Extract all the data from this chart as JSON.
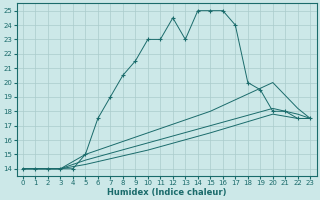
{
  "xlabel": "Humidex (Indice chaleur)",
  "xlim": [
    -0.5,
    23.5
  ],
  "ylim": [
    13.5,
    25.5
  ],
  "xticks": [
    0,
    1,
    2,
    3,
    4,
    5,
    6,
    7,
    8,
    9,
    10,
    11,
    12,
    13,
    14,
    15,
    16,
    17,
    18,
    19,
    20,
    21,
    22,
    23
  ],
  "yticks": [
    14,
    15,
    16,
    17,
    18,
    19,
    20,
    21,
    22,
    23,
    24,
    25
  ],
  "bg_color": "#cce8e8",
  "grid_color": "#aacccc",
  "line_color": "#1a6b6b",
  "line1_x": [
    0,
    1,
    2,
    3,
    4,
    5,
    6,
    7,
    8,
    9,
    10,
    11,
    12,
    13,
    14,
    15,
    16,
    17,
    18,
    19,
    20,
    21,
    22,
    23
  ],
  "line1_y": [
    14,
    14,
    14,
    14,
    14,
    15,
    17.5,
    19,
    20.5,
    21.5,
    23,
    23,
    24.5,
    23,
    25,
    25,
    25,
    24,
    20,
    19.5,
    18,
    18,
    17.5,
    17.5
  ],
  "line2_x": [
    0,
    23
  ],
  "line2_y": [
    14,
    17.5
  ],
  "line3_x": [
    0,
    23
  ],
  "line3_y": [
    14,
    17.5
  ],
  "line4_x": [
    0,
    23
  ],
  "line4_y": [
    14,
    17.5
  ],
  "line2_pts_x": [
    0,
    3,
    5,
    10,
    15,
    20,
    22,
    23
  ],
  "line2_pts_y": [
    14,
    14,
    14.3,
    15.3,
    16.5,
    17.8,
    17.5,
    17.5
  ],
  "line3_pts_x": [
    0,
    3,
    5,
    10,
    15,
    20,
    22,
    23
  ],
  "line3_pts_y": [
    14,
    14,
    14.6,
    15.8,
    17.0,
    18.2,
    17.8,
    17.5
  ],
  "line4_pts_x": [
    0,
    3,
    5,
    10,
    15,
    20,
    22,
    23
  ],
  "line4_pts_y": [
    14,
    14,
    15.0,
    16.5,
    18.0,
    20.0,
    18.2,
    17.5
  ]
}
